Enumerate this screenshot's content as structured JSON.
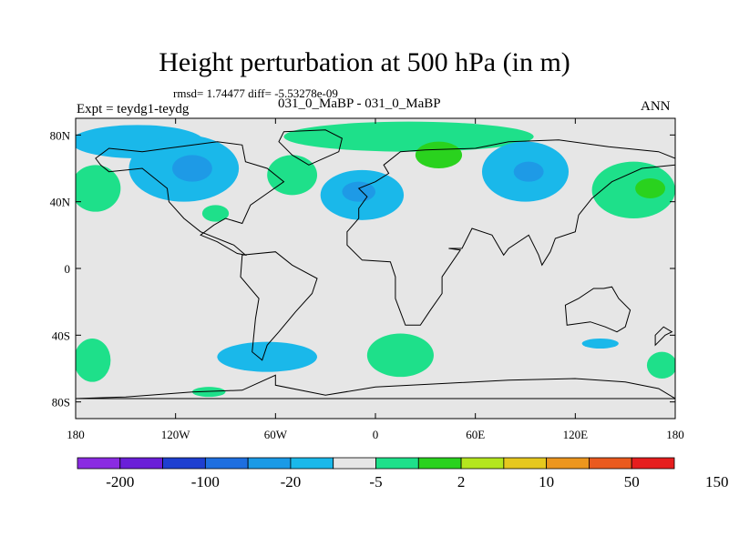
{
  "header": {
    "title": "Height perturbation at 500 hPa (in m)",
    "stats": "rmsd= 1.74477 diff= -5.53278e-09",
    "experiment": "Expt = teydg1-teydg",
    "pair": "031_0_MaBP - 031_0_MaBP",
    "season": "ANN"
  },
  "axes": {
    "y_ticks": [
      {
        "label": "80N",
        "lat": 80
      },
      {
        "label": "40N",
        "lat": 40
      },
      {
        "label": "0",
        "lat": 0
      },
      {
        "label": "40S",
        "lat": -40
      },
      {
        "label": "80S",
        "lat": -80
      }
    ],
    "x_ticks": [
      {
        "label": "180",
        "lon": -180
      },
      {
        "label": "120W",
        "lon": -120
      },
      {
        "label": "60W",
        "lon": -60
      },
      {
        "label": "0",
        "lon": 0
      },
      {
        "label": "60E",
        "lon": 60
      },
      {
        "label": "120E",
        "lon": 120
      },
      {
        "label": "180",
        "lon": 180
      }
    ],
    "lon_range": [
      -180,
      180
    ],
    "lat_range": [
      -90,
      90
    ]
  },
  "colorbar": {
    "colors": [
      "#8a2be2",
      "#6a1fd8",
      "#1e3fd0",
      "#1e6fe0",
      "#1a9ae6",
      "#1ab8ea",
      "#e6e6e6",
      "#1ee08a",
      "#2ad21e",
      "#b4e61e",
      "#e6c81e",
      "#ec961e",
      "#ea5a1e",
      "#e61e1e"
    ],
    "labels": [
      {
        "text": "-200",
        "boundary": 1
      },
      {
        "text": "-100",
        "boundary": 3
      },
      {
        "text": "-20",
        "boundary": 5
      },
      {
        "text": "-5",
        "boundary": 7
      },
      {
        "text": "2",
        "boundary": 9
      },
      {
        "text": "10",
        "boundary": 11
      },
      {
        "text": "50",
        "boundary": 13
      },
      {
        "text": "150",
        "boundary": 15
      }
    ]
  },
  "map": {
    "background_color": "#e6e6e6",
    "anomalies": [
      {
        "name": "anomaly-arctic-canada-negative",
        "color": "#1ab8ea",
        "lon": -143,
        "lat": 76,
        "rlon": 40,
        "rlat": 10
      },
      {
        "name": "anomaly-north-america-negative",
        "color": "#1ab8ea",
        "lon": -115,
        "lat": 60,
        "rlon": 33,
        "rlat": 20
      },
      {
        "name": "anomaly-north-america-core",
        "color": "#1e9ae6",
        "lon": -110,
        "lat": 60,
        "rlon": 12,
        "rlat": 8
      },
      {
        "name": "anomaly-arctic-positive",
        "color": "#1ee08a",
        "lon": 20,
        "lat": 79,
        "rlon": 75,
        "rlat": 9
      },
      {
        "name": "anomaly-siberia-positive",
        "color": "#2ad21e",
        "lon": 38,
        "lat": 68,
        "rlon": 14,
        "rlat": 8
      },
      {
        "name": "anomaly-north-pacific-positive",
        "color": "#1ee08a",
        "lon": -168,
        "lat": 48,
        "rlon": 15,
        "rlat": 14
      },
      {
        "name": "anomaly-europe-negative",
        "color": "#1ab8ea",
        "lon": -8,
        "lat": 44,
        "rlon": 25,
        "rlat": 15
      },
      {
        "name": "anomaly-europe-core",
        "color": "#1e9ae6",
        "lon": -10,
        "lat": 46,
        "rlon": 10,
        "rlat": 6
      },
      {
        "name": "anomaly-north-atlantic-positive",
        "color": "#1ee08a",
        "lon": -50,
        "lat": 56,
        "rlon": 15,
        "rlat": 12
      },
      {
        "name": "anomaly-us-positive",
        "color": "#1ee08a",
        "lon": -96,
        "lat": 33,
        "rlon": 8,
        "rlat": 5
      },
      {
        "name": "anomaly-asia-negative",
        "color": "#1ab8ea",
        "lon": 90,
        "lat": 58,
        "rlon": 26,
        "rlat": 18
      },
      {
        "name": "anomaly-asia-core",
        "color": "#1e9ae6",
        "lon": 92,
        "lat": 58,
        "rlon": 9,
        "rlat": 6
      },
      {
        "name": "anomaly-east-asia-positive",
        "color": "#1ee08a",
        "lon": 155,
        "lat": 47,
        "rlon": 25,
        "rlat": 17
      },
      {
        "name": "anomaly-east-asia-core",
        "color": "#2ad21e",
        "lon": 165,
        "lat": 48,
        "rlon": 9,
        "rlat": 6
      },
      {
        "name": "anomaly-south-pacific-positive",
        "color": "#1ee08a",
        "lon": -170,
        "lat": -55,
        "rlon": 11,
        "rlat": 13
      },
      {
        "name": "anomaly-south-america-negative",
        "color": "#1ab8ea",
        "lon": -65,
        "lat": -53,
        "rlon": 30,
        "rlat": 9
      },
      {
        "name": "anomaly-south-atlantic-positive",
        "color": "#1ee08a",
        "lon": 15,
        "lat": -52,
        "rlon": 20,
        "rlat": 13
      },
      {
        "name": "anomaly-indian-ocean-negative",
        "color": "#1ab8ea",
        "lon": 135,
        "lat": -45,
        "rlon": 11,
        "rlat": 3
      },
      {
        "name": "anomaly-southern-ocean-positive",
        "color": "#1ee08a",
        "lon": 172,
        "lat": -58,
        "rlon": 9,
        "rlat": 8
      },
      {
        "name": "anomaly-antarctic-positive",
        "color": "#1ee08a",
        "lon": -100,
        "lat": -74,
        "rlon": 10,
        "rlat": 3
      }
    ],
    "continents": [
      {
        "name": "north-america-outline",
        "points": [
          [
            -168,
            66
          ],
          [
            -160,
            72
          ],
          [
            -140,
            70
          ],
          [
            -125,
            72
          ],
          [
            -95,
            76
          ],
          [
            -80,
            74
          ],
          [
            -78,
            64
          ],
          [
            -65,
            60
          ],
          [
            -55,
            52
          ],
          [
            -65,
            45
          ],
          [
            -75,
            38
          ],
          [
            -80,
            27
          ],
          [
            -90,
            30
          ],
          [
            -97,
            26
          ],
          [
            -105,
            20
          ],
          [
            -95,
            16
          ],
          [
            -83,
            9
          ],
          [
            -78,
            8
          ],
          [
            -85,
            14
          ],
          [
            -105,
            22
          ],
          [
            -115,
            30
          ],
          [
            -124,
            40
          ],
          [
            -125,
            48
          ],
          [
            -140,
            60
          ],
          [
            -160,
            58
          ],
          [
            -165,
            62
          ]
        ]
      },
      {
        "name": "greenland-outline",
        "points": [
          [
            -55,
            82
          ],
          [
            -30,
            83
          ],
          [
            -20,
            78
          ],
          [
            -22,
            70
          ],
          [
            -40,
            62
          ],
          [
            -50,
            68
          ],
          [
            -58,
            76
          ]
        ]
      },
      {
        "name": "south-america-outline",
        "points": [
          [
            -80,
            8
          ],
          [
            -60,
            10
          ],
          [
            -50,
            2
          ],
          [
            -35,
            -6
          ],
          [
            -38,
            -15
          ],
          [
            -48,
            -26
          ],
          [
            -58,
            -38
          ],
          [
            -65,
            -46
          ],
          [
            -68,
            -55
          ],
          [
            -74,
            -50
          ],
          [
            -72,
            -30
          ],
          [
            -70,
            -18
          ],
          [
            -81,
            -5
          ]
        ]
      },
      {
        "name": "eurasia-africa-outline",
        "points": [
          [
            -10,
            36
          ],
          [
            -5,
            43
          ],
          [
            -10,
            48
          ],
          [
            0,
            52
          ],
          [
            8,
            57
          ],
          [
            5,
            62
          ],
          [
            15,
            70
          ],
          [
            30,
            71
          ],
          [
            60,
            72
          ],
          [
            80,
            76
          ],
          [
            110,
            77
          ],
          [
            140,
            73
          ],
          [
            170,
            70
          ],
          [
            180,
            66
          ],
          [
            180,
            62
          ],
          [
            160,
            60
          ],
          [
            142,
            52
          ],
          [
            130,
            42
          ],
          [
            122,
            32
          ],
          [
            120,
            22
          ],
          [
            108,
            18
          ],
          [
            105,
            10
          ],
          [
            100,
            2
          ],
          [
            98,
            8
          ],
          [
            92,
            20
          ],
          [
            80,
            12
          ],
          [
            77,
            8
          ],
          [
            70,
            20
          ],
          [
            58,
            24
          ],
          [
            52,
            12
          ],
          [
            44,
            12
          ],
          [
            51,
            11
          ],
          [
            40,
            -5
          ],
          [
            40,
            -15
          ],
          [
            33,
            -25
          ],
          [
            27,
            -34
          ],
          [
            18,
            -34
          ],
          [
            12,
            -18
          ],
          [
            12,
            -5
          ],
          [
            9,
            4
          ],
          [
            -8,
            5
          ],
          [
            -17,
            14
          ],
          [
            -17,
            22
          ],
          [
            -10,
            30
          ]
        ]
      },
      {
        "name": "australia-outline",
        "points": [
          [
            114,
            -22
          ],
          [
            122,
            -18
          ],
          [
            131,
            -12
          ],
          [
            137,
            -12
          ],
          [
            142,
            -11
          ],
          [
            146,
            -18
          ],
          [
            153,
            -25
          ],
          [
            150,
            -35
          ],
          [
            145,
            -38
          ],
          [
            138,
            -35
          ],
          [
            129,
            -32
          ],
          [
            115,
            -34
          ]
        ]
      },
      {
        "name": "new-zealand-outline",
        "points": [
          [
            168,
            -46
          ],
          [
            174,
            -40
          ],
          [
            178,
            -38
          ],
          [
            173,
            -35
          ],
          [
            168,
            -40
          ]
        ]
      },
      {
        "name": "antarctica-outline",
        "points": [
          [
            -180,
            -78
          ],
          [
            -150,
            -77
          ],
          [
            -110,
            -74
          ],
          [
            -80,
            -73
          ],
          [
            -60,
            -64
          ],
          [
            -60,
            -70
          ],
          [
            -30,
            -76
          ],
          [
            0,
            -71
          ],
          [
            40,
            -69
          ],
          [
            80,
            -67
          ],
          [
            120,
            -66
          ],
          [
            150,
            -68
          ],
          [
            170,
            -72
          ],
          [
            180,
            -78
          ]
        ]
      }
    ]
  }
}
